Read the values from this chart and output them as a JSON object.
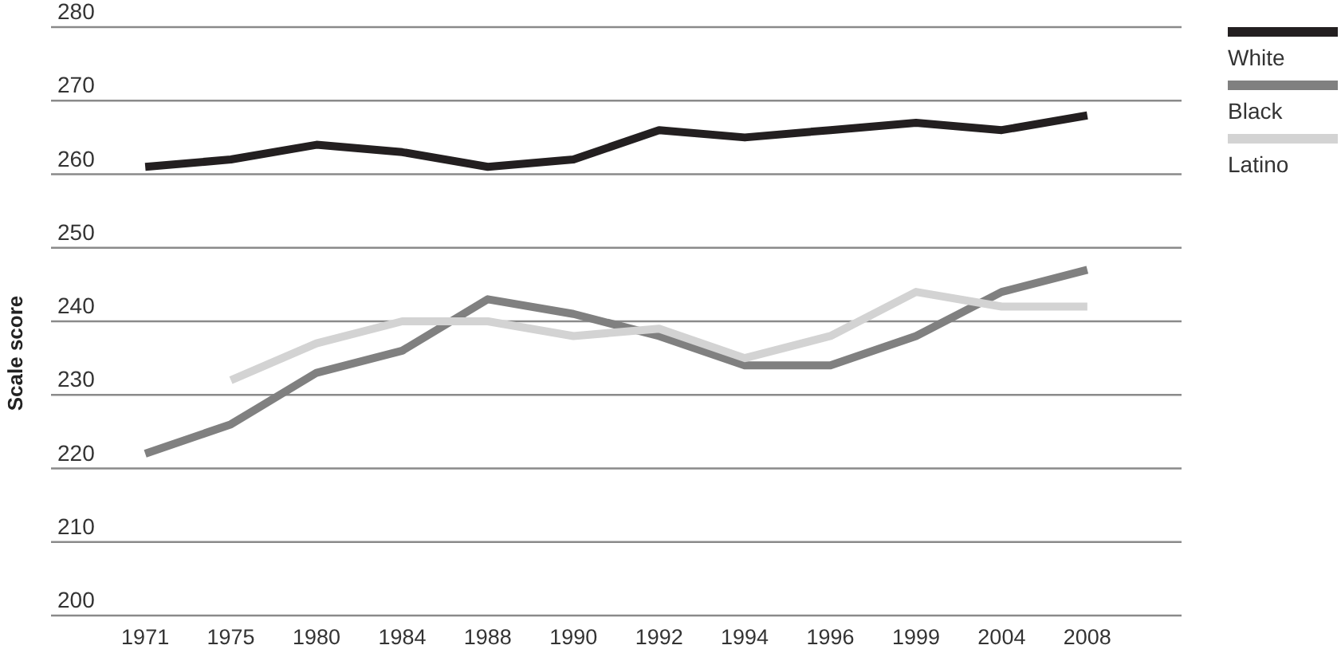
{
  "chart_data": {
    "type": "line",
    "ylabel": "Scale score",
    "categories": [
      "1971",
      "1975",
      "1980",
      "1984",
      "1988",
      "1990",
      "1992",
      "1994",
      "1996",
      "1999",
      "2004",
      "2008"
    ],
    "series": [
      {
        "name": "White",
        "color": "#231f20",
        "values": [
          261,
          262,
          264,
          263,
          261,
          262,
          266,
          265,
          266,
          267,
          266,
          268
        ]
      },
      {
        "name": "Black",
        "color": "#808080",
        "values": [
          222,
          226,
          233,
          236,
          243,
          241,
          238,
          234,
          234,
          238,
          244,
          247
        ]
      },
      {
        "name": "Latino",
        "color": "#d3d3d3",
        "values": [
          null,
          232,
          237,
          240,
          240,
          238,
          239,
          235,
          238,
          244,
          242,
          242
        ]
      }
    ],
    "ylim": [
      200,
      280
    ],
    "yticks": [
      200,
      210,
      220,
      230,
      240,
      250,
      260,
      270,
      280
    ],
    "grid": "y",
    "legend": "top right"
  }
}
